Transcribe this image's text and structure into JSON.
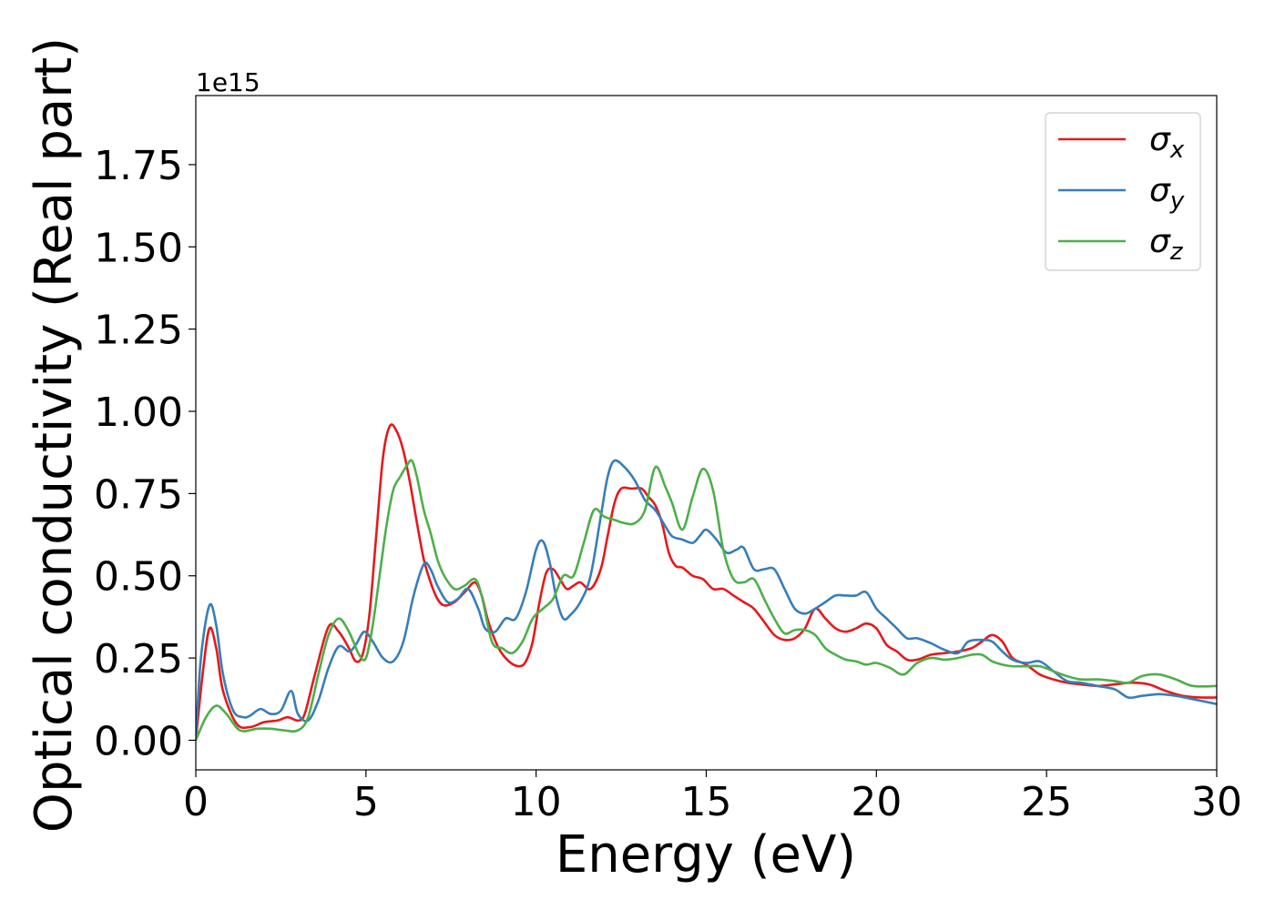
{
  "chart_data": {
    "type": "line",
    "title": "",
    "xlabel": "Energy (eV)",
    "ylabel": "Optical conductivity (Real part)",
    "y_offset_text": "1e15",
    "xlim": [
      0,
      30
    ],
    "ylim": [
      -0.09,
      1.96
    ],
    "x_ticks": [
      0,
      5,
      10,
      15,
      20,
      25,
      30
    ],
    "x_tick_labels": [
      "0",
      "5",
      "10",
      "15",
      "20",
      "25",
      "30"
    ],
    "y_ticks": [
      0.0,
      0.25,
      0.5,
      0.75,
      1.0,
      1.25,
      1.5,
      1.75
    ],
    "y_tick_labels": [
      "0.00",
      "0.25",
      "0.50",
      "0.75",
      "1.00",
      "1.25",
      "1.50",
      "1.75"
    ],
    "grid": false,
    "legend_position": "top-right",
    "series": [
      {
        "name": "σx",
        "legend_main": "σ",
        "legend_sub": "x",
        "color": "#e41a1c",
        "points": [
          [
            0,
            0
          ],
          [
            0.2,
            0.2
          ],
          [
            0.4,
            0.34
          ],
          [
            0.6,
            0.28
          ],
          [
            0.8,
            0.15
          ],
          [
            1.2,
            0.05
          ],
          [
            1.6,
            0.04
          ],
          [
            2.0,
            0.055
          ],
          [
            2.4,
            0.06
          ],
          [
            2.7,
            0.07
          ],
          [
            3.0,
            0.06
          ],
          [
            3.2,
            0.08
          ],
          [
            3.5,
            0.2
          ],
          [
            3.9,
            0.345
          ],
          [
            4.2,
            0.33
          ],
          [
            4.5,
            0.28
          ],
          [
            4.7,
            0.24
          ],
          [
            4.9,
            0.26
          ],
          [
            5.1,
            0.38
          ],
          [
            5.3,
            0.62
          ],
          [
            5.5,
            0.86
          ],
          [
            5.7,
            0.955
          ],
          [
            5.9,
            0.94
          ],
          [
            6.1,
            0.88
          ],
          [
            6.3,
            0.78
          ],
          [
            6.5,
            0.66
          ],
          [
            6.7,
            0.55
          ],
          [
            6.9,
            0.48
          ],
          [
            7.1,
            0.43
          ],
          [
            7.3,
            0.41
          ],
          [
            7.6,
            0.42
          ],
          [
            7.9,
            0.45
          ],
          [
            8.2,
            0.48
          ],
          [
            8.4,
            0.44
          ],
          [
            8.6,
            0.36
          ],
          [
            8.9,
            0.28
          ],
          [
            9.2,
            0.24
          ],
          [
            9.5,
            0.225
          ],
          [
            9.7,
            0.24
          ],
          [
            9.9,
            0.3
          ],
          [
            10.1,
            0.42
          ],
          [
            10.3,
            0.51
          ],
          [
            10.5,
            0.52
          ],
          [
            10.7,
            0.49
          ],
          [
            10.9,
            0.46
          ],
          [
            11.1,
            0.47
          ],
          [
            11.3,
            0.48
          ],
          [
            11.6,
            0.46
          ],
          [
            11.9,
            0.52
          ],
          [
            12.1,
            0.62
          ],
          [
            12.3,
            0.72
          ],
          [
            12.5,
            0.765
          ],
          [
            12.8,
            0.765
          ],
          [
            13.1,
            0.765
          ],
          [
            13.3,
            0.74
          ],
          [
            13.5,
            0.715
          ],
          [
            13.7,
            0.66
          ],
          [
            13.9,
            0.57
          ],
          [
            14.1,
            0.53
          ],
          [
            14.3,
            0.525
          ],
          [
            14.6,
            0.5
          ],
          [
            14.9,
            0.49
          ],
          [
            15.2,
            0.46
          ],
          [
            15.5,
            0.46
          ],
          [
            15.8,
            0.44
          ],
          [
            16.1,
            0.42
          ],
          [
            16.4,
            0.4
          ],
          [
            16.7,
            0.36
          ],
          [
            17.0,
            0.32
          ],
          [
            17.3,
            0.305
          ],
          [
            17.6,
            0.31
          ],
          [
            17.9,
            0.34
          ],
          [
            18.2,
            0.4
          ],
          [
            18.5,
            0.37
          ],
          [
            18.8,
            0.34
          ],
          [
            19.1,
            0.33
          ],
          [
            19.4,
            0.34
          ],
          [
            19.7,
            0.355
          ],
          [
            20.0,
            0.34
          ],
          [
            20.3,
            0.29
          ],
          [
            20.6,
            0.27
          ],
          [
            20.9,
            0.245
          ],
          [
            21.2,
            0.245
          ],
          [
            21.6,
            0.26
          ],
          [
            22.0,
            0.265
          ],
          [
            22.4,
            0.27
          ],
          [
            22.8,
            0.28
          ],
          [
            23.1,
            0.3
          ],
          [
            23.4,
            0.32
          ],
          [
            23.7,
            0.3
          ],
          [
            24.0,
            0.25
          ],
          [
            24.4,
            0.23
          ],
          [
            24.8,
            0.2
          ],
          [
            25.2,
            0.185
          ],
          [
            25.6,
            0.175
          ],
          [
            26.0,
            0.17
          ],
          [
            26.5,
            0.165
          ],
          [
            27.0,
            0.17
          ],
          [
            27.5,
            0.175
          ],
          [
            28.0,
            0.17
          ],
          [
            28.5,
            0.15
          ],
          [
            29.0,
            0.135
          ],
          [
            29.5,
            0.13
          ],
          [
            30.0,
            0.13
          ]
        ]
      },
      {
        "name": "σy",
        "legend_main": "σ",
        "legend_sub": "y",
        "color": "#377eb8",
        "points": [
          [
            0,
            0
          ],
          [
            0.15,
            0.25
          ],
          [
            0.4,
            0.41
          ],
          [
            0.6,
            0.35
          ],
          [
            0.8,
            0.2
          ],
          [
            1.1,
            0.09
          ],
          [
            1.4,
            0.07
          ],
          [
            1.6,
            0.075
          ],
          [
            1.9,
            0.095
          ],
          [
            2.2,
            0.08
          ],
          [
            2.5,
            0.09
          ],
          [
            2.8,
            0.15
          ],
          [
            3.0,
            0.08
          ],
          [
            3.3,
            0.06
          ],
          [
            3.6,
            0.12
          ],
          [
            3.9,
            0.22
          ],
          [
            4.2,
            0.285
          ],
          [
            4.5,
            0.27
          ],
          [
            4.7,
            0.29
          ],
          [
            4.95,
            0.33
          ],
          [
            5.2,
            0.3
          ],
          [
            5.5,
            0.25
          ],
          [
            5.8,
            0.24
          ],
          [
            6.1,
            0.3
          ],
          [
            6.4,
            0.44
          ],
          [
            6.7,
            0.535
          ],
          [
            6.9,
            0.52
          ],
          [
            7.1,
            0.47
          ],
          [
            7.4,
            0.42
          ],
          [
            7.7,
            0.43
          ],
          [
            8.0,
            0.46
          ],
          [
            8.3,
            0.4
          ],
          [
            8.5,
            0.34
          ],
          [
            8.8,
            0.33
          ],
          [
            9.1,
            0.37
          ],
          [
            9.4,
            0.37
          ],
          [
            9.7,
            0.45
          ],
          [
            10.0,
            0.58
          ],
          [
            10.2,
            0.605
          ],
          [
            10.4,
            0.54
          ],
          [
            10.6,
            0.43
          ],
          [
            10.8,
            0.37
          ],
          [
            11.0,
            0.38
          ],
          [
            11.3,
            0.42
          ],
          [
            11.6,
            0.5
          ],
          [
            11.9,
            0.68
          ],
          [
            12.1,
            0.8
          ],
          [
            12.3,
            0.85
          ],
          [
            12.6,
            0.83
          ],
          [
            12.9,
            0.79
          ],
          [
            13.2,
            0.73
          ],
          [
            13.5,
            0.7
          ],
          [
            13.8,
            0.65
          ],
          [
            14.0,
            0.62
          ],
          [
            14.3,
            0.61
          ],
          [
            14.6,
            0.6
          ],
          [
            14.8,
            0.62
          ],
          [
            15.0,
            0.64
          ],
          [
            15.3,
            0.61
          ],
          [
            15.6,
            0.57
          ],
          [
            15.9,
            0.58
          ],
          [
            16.1,
            0.585
          ],
          [
            16.4,
            0.52
          ],
          [
            16.7,
            0.52
          ],
          [
            17.0,
            0.52
          ],
          [
            17.3,
            0.46
          ],
          [
            17.6,
            0.4
          ],
          [
            17.9,
            0.385
          ],
          [
            18.2,
            0.4
          ],
          [
            18.5,
            0.42
          ],
          [
            18.8,
            0.44
          ],
          [
            19.1,
            0.44
          ],
          [
            19.4,
            0.44
          ],
          [
            19.7,
            0.45
          ],
          [
            20.0,
            0.4
          ],
          [
            20.3,
            0.37
          ],
          [
            20.6,
            0.34
          ],
          [
            20.9,
            0.31
          ],
          [
            21.2,
            0.31
          ],
          [
            21.6,
            0.295
          ],
          [
            22.0,
            0.275
          ],
          [
            22.4,
            0.265
          ],
          [
            22.7,
            0.3
          ],
          [
            23.1,
            0.305
          ],
          [
            23.4,
            0.3
          ],
          [
            23.7,
            0.27
          ],
          [
            24.0,
            0.245
          ],
          [
            24.4,
            0.235
          ],
          [
            24.8,
            0.24
          ],
          [
            25.2,
            0.21
          ],
          [
            25.6,
            0.18
          ],
          [
            26.0,
            0.175
          ],
          [
            26.5,
            0.165
          ],
          [
            27.0,
            0.155
          ],
          [
            27.4,
            0.13
          ],
          [
            27.8,
            0.135
          ],
          [
            28.3,
            0.14
          ],
          [
            28.8,
            0.135
          ],
          [
            29.3,
            0.125
          ],
          [
            30.0,
            0.11
          ]
        ]
      },
      {
        "name": "σz",
        "legend_main": "σ",
        "legend_sub": "z",
        "color": "#4daf4a",
        "points": [
          [
            0,
            0
          ],
          [
            0.3,
            0.07
          ],
          [
            0.6,
            0.105
          ],
          [
            0.9,
            0.08
          ],
          [
            1.3,
            0.03
          ],
          [
            1.8,
            0.035
          ],
          [
            2.2,
            0.035
          ],
          [
            2.6,
            0.03
          ],
          [
            3.0,
            0.03
          ],
          [
            3.3,
            0.07
          ],
          [
            3.6,
            0.2
          ],
          [
            3.9,
            0.32
          ],
          [
            4.2,
            0.37
          ],
          [
            4.5,
            0.33
          ],
          [
            4.8,
            0.26
          ],
          [
            5.0,
            0.25
          ],
          [
            5.2,
            0.35
          ],
          [
            5.4,
            0.5
          ],
          [
            5.6,
            0.65
          ],
          [
            5.8,
            0.76
          ],
          [
            6.0,
            0.8
          ],
          [
            6.2,
            0.835
          ],
          [
            6.35,
            0.85
          ],
          [
            6.5,
            0.8
          ],
          [
            6.7,
            0.7
          ],
          [
            6.9,
            0.63
          ],
          [
            7.1,
            0.55
          ],
          [
            7.3,
            0.5
          ],
          [
            7.6,
            0.46
          ],
          [
            7.9,
            0.47
          ],
          [
            8.2,
            0.49
          ],
          [
            8.4,
            0.44
          ],
          [
            8.7,
            0.3
          ],
          [
            9.0,
            0.28
          ],
          [
            9.3,
            0.265
          ],
          [
            9.6,
            0.3
          ],
          [
            9.9,
            0.37
          ],
          [
            10.2,
            0.4
          ],
          [
            10.5,
            0.43
          ],
          [
            10.8,
            0.5
          ],
          [
            11.1,
            0.5
          ],
          [
            11.4,
            0.6
          ],
          [
            11.7,
            0.7
          ],
          [
            12.0,
            0.68
          ],
          [
            12.3,
            0.67
          ],
          [
            12.6,
            0.66
          ],
          [
            12.9,
            0.66
          ],
          [
            13.2,
            0.7
          ],
          [
            13.5,
            0.83
          ],
          [
            13.8,
            0.77
          ],
          [
            14.0,
            0.72
          ],
          [
            14.3,
            0.64
          ],
          [
            14.6,
            0.74
          ],
          [
            14.9,
            0.825
          ],
          [
            15.2,
            0.76
          ],
          [
            15.5,
            0.58
          ],
          [
            15.8,
            0.49
          ],
          [
            16.1,
            0.48
          ],
          [
            16.4,
            0.49
          ],
          [
            16.7,
            0.43
          ],
          [
            17.0,
            0.37
          ],
          [
            17.3,
            0.325
          ],
          [
            17.6,
            0.335
          ],
          [
            17.9,
            0.335
          ],
          [
            18.2,
            0.32
          ],
          [
            18.5,
            0.28
          ],
          [
            18.8,
            0.26
          ],
          [
            19.1,
            0.245
          ],
          [
            19.4,
            0.24
          ],
          [
            19.7,
            0.23
          ],
          [
            20.0,
            0.235
          ],
          [
            20.4,
            0.22
          ],
          [
            20.8,
            0.2
          ],
          [
            21.2,
            0.235
          ],
          [
            21.6,
            0.25
          ],
          [
            22.0,
            0.245
          ],
          [
            22.4,
            0.25
          ],
          [
            22.8,
            0.26
          ],
          [
            23.1,
            0.26
          ],
          [
            23.4,
            0.24
          ],
          [
            23.7,
            0.23
          ],
          [
            24.0,
            0.225
          ],
          [
            24.4,
            0.225
          ],
          [
            24.8,
            0.225
          ],
          [
            25.2,
            0.21
          ],
          [
            25.6,
            0.195
          ],
          [
            26.0,
            0.185
          ],
          [
            26.5,
            0.185
          ],
          [
            27.0,
            0.18
          ],
          [
            27.4,
            0.175
          ],
          [
            27.8,
            0.195
          ],
          [
            28.3,
            0.2
          ],
          [
            28.8,
            0.185
          ],
          [
            29.3,
            0.165
          ],
          [
            30.0,
            0.165
          ]
        ]
      }
    ]
  }
}
